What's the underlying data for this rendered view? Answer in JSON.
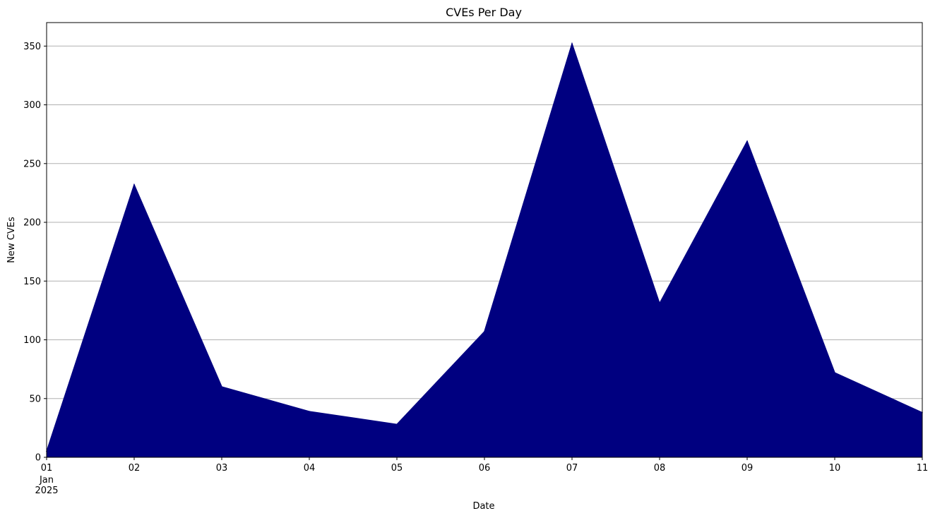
{
  "chart_data": {
    "type": "area",
    "title": "CVEs Per Day",
    "xlabel": "Date",
    "ylabel": "New CVEs",
    "x": [
      "2025-01-01",
      "2025-01-02",
      "2025-01-03",
      "2025-01-04",
      "2025-01-05",
      "2025-01-06",
      "2025-01-07",
      "2025-01-08",
      "2025-01-09",
      "2025-01-10",
      "2025-01-11"
    ],
    "x_tick_labels": [
      "01",
      "02",
      "03",
      "04",
      "05",
      "06",
      "07",
      "08",
      "09",
      "10",
      "11"
    ],
    "x_tick_sublabel": [
      "Jan",
      "2025"
    ],
    "values": [
      5,
      232,
      60,
      39,
      28,
      107,
      352,
      131,
      269,
      72,
      38
    ],
    "ylim": [
      0,
      370
    ],
    "y_ticks": [
      0,
      50,
      100,
      150,
      200,
      250,
      300,
      350
    ],
    "grid": "horizontal",
    "fill_color": "#000080",
    "grid_color": "#b0b0b0"
  }
}
